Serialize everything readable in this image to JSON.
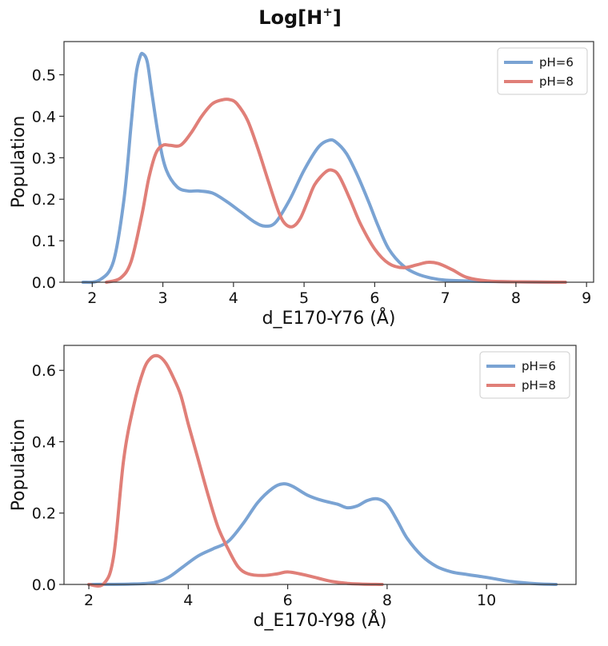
{
  "figure": {
    "title_main": "Log[H",
    "title_sup": "+",
    "title_end": "]"
  },
  "colors": {
    "blue": "#7aa3d3",
    "red": "#e07f78"
  },
  "chart_data": [
    {
      "type": "line",
      "name": "top",
      "xlabel": "d_E170-Y76 (Å)",
      "ylabel": "Population",
      "xlim": [
        1.6,
        9.1
      ],
      "ylim": [
        0,
        0.58
      ],
      "xticks": [
        2,
        3,
        4,
        5,
        6,
        7,
        8,
        9
      ],
      "yticks": [
        0.0,
        0.1,
        0.2,
        0.3,
        0.4,
        0.5
      ],
      "ytick_labels": [
        "0.0",
        "0.1",
        "0.2",
        "0.3",
        "0.4",
        "0.5"
      ],
      "legend": {
        "position": "top-right",
        "entries": [
          "pH=6",
          "pH=8"
        ]
      },
      "series": [
        {
          "name": "pH=6",
          "color": "#7aa3d3",
          "x": [
            1.87,
            2.1,
            2.3,
            2.45,
            2.55,
            2.62,
            2.68,
            2.72,
            2.78,
            2.85,
            2.95,
            3.05,
            3.2,
            3.35,
            3.5,
            3.7,
            3.9,
            4.1,
            4.3,
            4.45,
            4.6,
            4.8,
            5.0,
            5.2,
            5.35,
            5.45,
            5.6,
            5.75,
            5.9,
            6.05,
            6.2,
            6.4,
            6.6,
            6.8,
            7.0,
            7.3,
            7.6,
            8.0,
            8.5,
            8.7
          ],
          "y": [
            0.0,
            0.005,
            0.05,
            0.2,
            0.38,
            0.5,
            0.545,
            0.55,
            0.53,
            0.45,
            0.34,
            0.27,
            0.23,
            0.22,
            0.22,
            0.215,
            0.195,
            0.17,
            0.145,
            0.135,
            0.145,
            0.2,
            0.27,
            0.325,
            0.342,
            0.338,
            0.31,
            0.26,
            0.2,
            0.135,
            0.08,
            0.04,
            0.02,
            0.01,
            0.005,
            0.003,
            0.002,
            0.001,
            0.0,
            0.0
          ]
        },
        {
          "name": "pH=8",
          "color": "#e07f78",
          "x": [
            2.2,
            2.4,
            2.55,
            2.7,
            2.8,
            2.9,
            3.0,
            3.1,
            3.25,
            3.4,
            3.55,
            3.7,
            3.85,
            3.95,
            4.05,
            4.2,
            4.35,
            4.5,
            4.65,
            4.75,
            4.85,
            4.95,
            5.05,
            5.15,
            5.3,
            5.4,
            5.5,
            5.65,
            5.8,
            6.0,
            6.2,
            6.4,
            6.6,
            6.75,
            6.9,
            7.1,
            7.3,
            7.6,
            8.0,
            8.7
          ],
          "y": [
            0.0,
            0.01,
            0.05,
            0.16,
            0.25,
            0.31,
            0.33,
            0.33,
            0.33,
            0.36,
            0.4,
            0.43,
            0.44,
            0.44,
            0.43,
            0.39,
            0.32,
            0.24,
            0.165,
            0.138,
            0.135,
            0.155,
            0.195,
            0.235,
            0.265,
            0.27,
            0.255,
            0.2,
            0.14,
            0.08,
            0.045,
            0.035,
            0.042,
            0.048,
            0.045,
            0.03,
            0.012,
            0.003,
            0.001,
            0.0
          ]
        }
      ]
    },
    {
      "type": "line",
      "name": "bottom",
      "xlabel": "d_E170-Y98 (Å)",
      "ylabel": "Population",
      "xlim": [
        1.5,
        11.8
      ],
      "ylim": [
        0,
        0.67
      ],
      "xticks": [
        2,
        4,
        6,
        8,
        10
      ],
      "yticks": [
        0.0,
        0.2,
        0.4,
        0.6
      ],
      "ytick_labels": [
        "0.0",
        "0.2",
        "0.4",
        "0.6"
      ],
      "legend": {
        "position": "top-right",
        "entries": [
          "pH=6",
          "pH=8"
        ]
      },
      "series": [
        {
          "name": "pH=6",
          "color": "#7aa3d3",
          "x": [
            2.0,
            2.8,
            3.3,
            3.6,
            3.9,
            4.2,
            4.5,
            4.8,
            5.1,
            5.4,
            5.7,
            5.9,
            6.1,
            6.4,
            6.7,
            7.0,
            7.2,
            7.4,
            7.6,
            7.8,
            8.0,
            8.2,
            8.4,
            8.7,
            9.0,
            9.3,
            9.6,
            9.9,
            10.2,
            10.5,
            11.0,
            11.4
          ],
          "y": [
            0.0,
            0.001,
            0.005,
            0.02,
            0.05,
            0.08,
            0.1,
            0.12,
            0.17,
            0.23,
            0.27,
            0.282,
            0.275,
            0.25,
            0.235,
            0.225,
            0.215,
            0.22,
            0.235,
            0.24,
            0.225,
            0.18,
            0.13,
            0.08,
            0.05,
            0.035,
            0.028,
            0.022,
            0.015,
            0.008,
            0.002,
            0.0
          ]
        },
        {
          "name": "pH=8",
          "color": "#e07f78",
          "x": [
            2.0,
            2.3,
            2.5,
            2.7,
            2.9,
            3.1,
            3.25,
            3.4,
            3.55,
            3.7,
            3.85,
            4.0,
            4.2,
            4.4,
            4.6,
            4.8,
            5.0,
            5.2,
            5.5,
            5.8,
            6.0,
            6.3,
            6.6,
            6.9,
            7.2,
            7.5,
            7.9
          ],
          "y": [
            0.0,
            0.002,
            0.08,
            0.35,
            0.5,
            0.6,
            0.635,
            0.64,
            0.62,
            0.58,
            0.53,
            0.45,
            0.35,
            0.25,
            0.16,
            0.1,
            0.05,
            0.03,
            0.025,
            0.03,
            0.035,
            0.028,
            0.018,
            0.008,
            0.003,
            0.001,
            0.0
          ]
        }
      ]
    }
  ]
}
